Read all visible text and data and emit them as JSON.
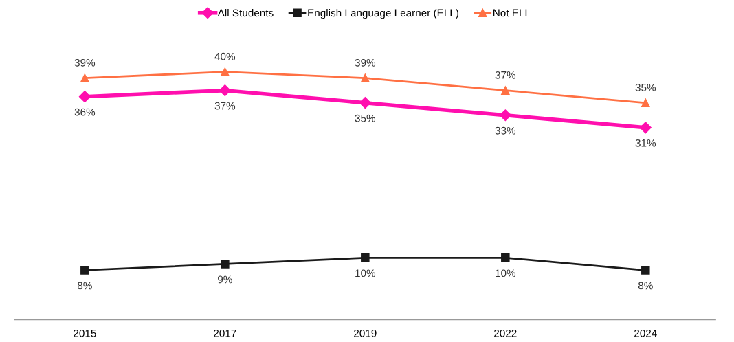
{
  "chart_data": {
    "type": "line",
    "categories": [
      "2015",
      "2017",
      "2019",
      "2022",
      "2024"
    ],
    "series": [
      {
        "name": "All Students",
        "color": "#ff0fae",
        "marker": "diamond",
        "values": [
          36,
          37,
          35,
          33,
          31
        ],
        "value_labels": [
          "36%",
          "37%",
          "35%",
          "33%",
          "31%"
        ]
      },
      {
        "name": "English Language Learner (ELL)",
        "color": "#1a1a1a",
        "marker": "square",
        "values": [
          8,
          9,
          10,
          10,
          8
        ],
        "value_labels": [
          "8%",
          "9%",
          "10%",
          "10%",
          "8%"
        ]
      },
      {
        "name": "Not ELL",
        "color": "#ff7043",
        "marker": "triangle",
        "values": [
          39,
          40,
          39,
          37,
          35
        ],
        "value_labels": [
          "39%",
          "40%",
          "39%",
          "37%",
          "35%"
        ]
      }
    ],
    "tick_labels": "x",
    "grid": false,
    "legend": "top"
  }
}
